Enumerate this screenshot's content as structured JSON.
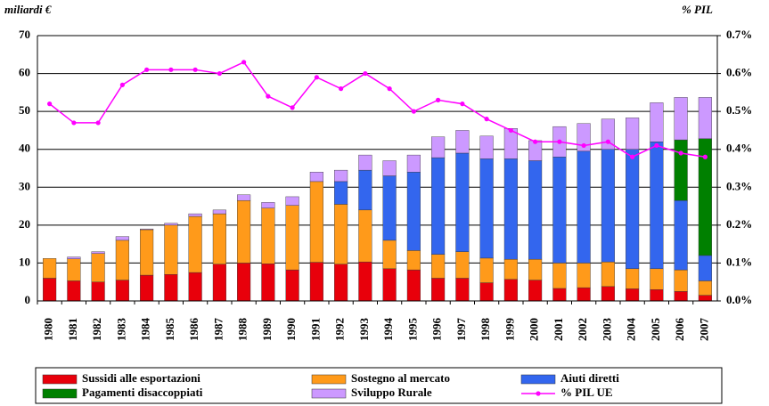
{
  "chart_data": {
    "type": "bar",
    "stacked": true,
    "y_label": "miliardi €",
    "y2_label": "% PIL",
    "categories": [
      "1980",
      "1981",
      "1982",
      "1983",
      "1984",
      "1985",
      "1986",
      "1987",
      "1988",
      "1989",
      "1990",
      "1991",
      "1992",
      "1993",
      "1994",
      "1995",
      "1996",
      "1997",
      "1998",
      "1999",
      "2000",
      "2001",
      "2002",
      "2003",
      "2004",
      "2005",
      "2006",
      "2007"
    ],
    "series": [
      {
        "name": "Sussidi alle esportazioni",
        "color": "#e8000b",
        "values": [
          6,
          5.3,
          5,
          5.5,
          6.8,
          7,
          7.5,
          9.7,
          10,
          9.8,
          8.2,
          10.2,
          9.7,
          10.3,
          8.5,
          8.2,
          6,
          6,
          4.8,
          5.7,
          5.5,
          3.3,
          3.5,
          3.8,
          3.2,
          3,
          2.5,
          1.5
        ]
      },
      {
        "name": "Sostegno al mercato",
        "color": "#ff9a1a",
        "values": [
          5.2,
          5.8,
          7.5,
          10.5,
          12,
          13,
          14.8,
          13.3,
          16.5,
          14.7,
          17,
          21.3,
          15.8,
          13.7,
          7.5,
          5.1,
          6.3,
          7,
          6.5,
          5.3,
          5.5,
          6.7,
          6.5,
          6.5,
          5.3,
          5.5,
          5.7,
          3.8
        ]
      },
      {
        "name": "Aiuti diretti",
        "color": "#3366ee",
        "values": [
          0,
          0,
          0,
          0,
          0,
          0,
          0,
          0,
          0,
          0,
          0,
          0,
          6,
          10.5,
          17,
          20.7,
          25.5,
          26,
          26.2,
          26.5,
          26,
          28,
          29.5,
          29.7,
          31.5,
          33.5,
          18.3,
          6.7
        ]
      },
      {
        "name": "Pagamenti disaccoppiati",
        "color": "#008000",
        "values": [
          0,
          0,
          0,
          0,
          0,
          0,
          0,
          0,
          0,
          0,
          0,
          0,
          0,
          0,
          0,
          0,
          0,
          0,
          0,
          0,
          0,
          0,
          0,
          0,
          0,
          0,
          16,
          30.8
        ]
      },
      {
        "name": "Sviluppo Rurale",
        "color": "#cc99ff",
        "values": [
          0,
          0.5,
          0.5,
          1,
          0.2,
          0.5,
          0.7,
          1,
          1.5,
          1.5,
          2.3,
          2.5,
          3,
          4,
          4,
          4.5,
          5.5,
          6,
          6,
          8,
          5.3,
          8,
          7.3,
          8,
          8.3,
          10.3,
          11.2,
          10.9
        ]
      },
      {
        "name": "% PIL UE",
        "color": "#ff00ff",
        "type": "line",
        "axis": "y2",
        "values": [
          0.52,
          0.47,
          0.47,
          0.57,
          0.61,
          0.61,
          0.61,
          0.6,
          0.63,
          0.54,
          0.51,
          0.59,
          0.56,
          0.6,
          0.56,
          0.5,
          0.53,
          0.52,
          0.48,
          0.45,
          0.42,
          0.42,
          0.41,
          0.42,
          0.38,
          0.41,
          0.39,
          0.38
        ]
      }
    ],
    "ylim": [
      0,
      70
    ],
    "yticks": [
      0,
      10,
      20,
      30,
      40,
      50,
      60,
      70
    ],
    "y2lim": [
      0,
      0.7
    ],
    "y2ticks": [
      {
        "value": 0,
        "label": "0.0%"
      },
      {
        "value": 0.1,
        "label": "0.1%"
      },
      {
        "value": 0.2,
        "label": "0.2%"
      },
      {
        "value": 0.3,
        "label": "0.3%"
      },
      {
        "value": 0.4,
        "label": "0.4%"
      },
      {
        "value": 0.5,
        "label": "0.5%"
      },
      {
        "value": 0.6,
        "label": "0.6%"
      },
      {
        "value": 0.7,
        "label": "0.7%"
      }
    ],
    "grid": true,
    "legend": "bottom"
  }
}
